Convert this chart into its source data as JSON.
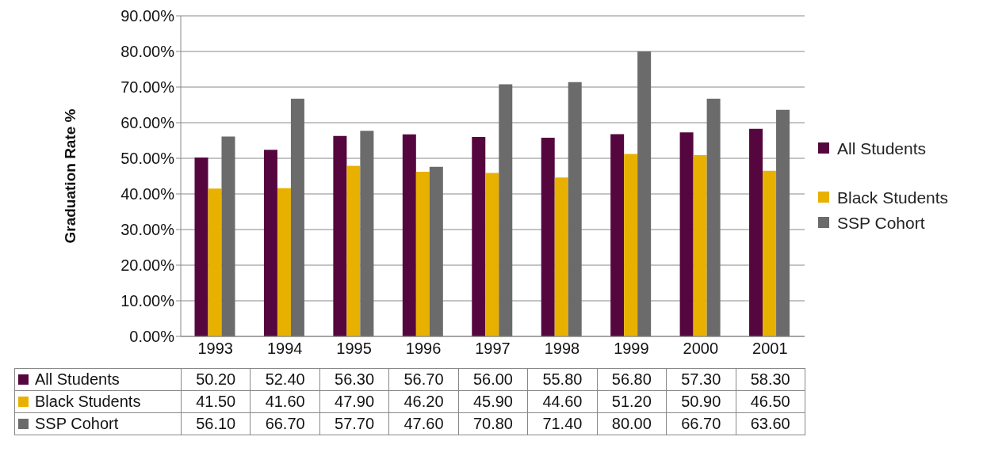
{
  "chart_data": {
    "type": "bar",
    "ylabel": "Graduation Rate %",
    "categories": [
      "1993",
      "1994",
      "1995",
      "1996",
      "1997",
      "1998",
      "1999",
      "2000",
      "2001"
    ],
    "series": [
      {
        "name": "All Students",
        "color": "#56063f",
        "values": [
          50.2,
          52.4,
          56.3,
          56.7,
          56.0,
          55.8,
          56.8,
          57.3,
          58.3
        ],
        "value_labels": [
          "50.20",
          "52.40",
          "56.30",
          "56.70",
          "56.00",
          "55.80",
          "56.80",
          "57.30",
          "58.30"
        ]
      },
      {
        "name": "Black Students",
        "color": "#e8b100",
        "values": [
          41.5,
          41.6,
          47.9,
          46.2,
          45.9,
          44.6,
          51.2,
          50.9,
          46.5
        ],
        "value_labels": [
          "41.50",
          "41.60",
          "47.90",
          "46.20",
          "45.90",
          "44.60",
          "51.20",
          "50.90",
          "46.50"
        ]
      },
      {
        "name": "SSP Cohort",
        "color": "#6b6b6b",
        "values": [
          56.1,
          66.7,
          57.7,
          47.6,
          70.8,
          71.4,
          80.0,
          66.7,
          63.6
        ],
        "value_labels": [
          "56.10",
          "66.70",
          "57.70",
          "47.60",
          "70.80",
          "71.40",
          "80.00",
          "66.70",
          "63.60"
        ]
      }
    ],
    "ylim": [
      0,
      90
    ],
    "yticks": [
      {
        "value": 0,
        "label": "0.00%"
      },
      {
        "value": 10,
        "label": "10.00%"
      },
      {
        "value": 20,
        "label": "20.00%"
      },
      {
        "value": 30,
        "label": "30.00%"
      },
      {
        "value": 40,
        "label": "40.00%"
      },
      {
        "value": 50,
        "label": "50.00%"
      },
      {
        "value": 60,
        "label": "60.00%"
      },
      {
        "value": 70,
        "label": "70.00%"
      },
      {
        "value": 80,
        "label": "80.00%"
      },
      {
        "value": 90,
        "label": "90.00%"
      }
    ],
    "grid": "y",
    "legend": "right"
  }
}
